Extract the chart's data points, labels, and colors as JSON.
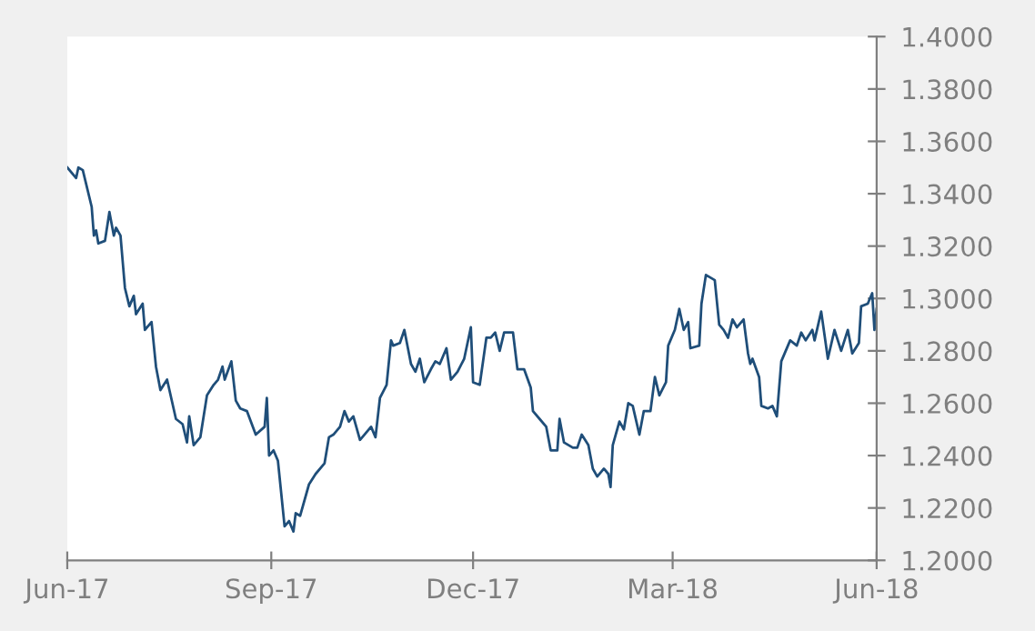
{
  "chart_data": {
    "type": "line",
    "xlim": [
      "2017-06-01",
      "2018-06-01"
    ],
    "xticks": [
      {
        "value": "2017-06-01",
        "label": "Jun-17"
      },
      {
        "value": "2017-09-01",
        "label": "Sep-17"
      },
      {
        "value": "2017-12-01",
        "label": "Dec-17"
      },
      {
        "value": "2018-03-01",
        "label": "Mar-18"
      },
      {
        "value": "2018-06-01",
        "label": "Jun-18"
      }
    ],
    "ylim": [
      1.2,
      1.4
    ],
    "yticks": [
      {
        "value": 1.2,
        "label": "1.2000"
      },
      {
        "value": 1.22,
        "label": "1.2200"
      },
      {
        "value": 1.24,
        "label": "1.2400"
      },
      {
        "value": 1.26,
        "label": "1.2600"
      },
      {
        "value": 1.28,
        "label": "1.2800"
      },
      {
        "value": 1.3,
        "label": "1.3000"
      },
      {
        "value": 1.32,
        "label": "1.3200"
      },
      {
        "value": 1.34,
        "label": "1.3400"
      },
      {
        "value": 1.36,
        "label": "1.3600"
      },
      {
        "value": 1.38,
        "label": "1.3800"
      },
      {
        "value": 1.4,
        "label": "1.4000"
      }
    ],
    "grid": false,
    "series": [
      {
        "color": "#1f4e79",
        "x": [
          "2017-06-01",
          "2017-06-05",
          "2017-06-06",
          "2017-06-08",
          "2017-06-12",
          "2017-06-13",
          "2017-06-14",
          "2017-06-15",
          "2017-06-18",
          "2017-06-20",
          "2017-06-22",
          "2017-06-23",
          "2017-06-25",
          "2017-06-27",
          "2017-06-29",
          "2017-07-01",
          "2017-07-02",
          "2017-07-05",
          "2017-07-06",
          "2017-07-09",
          "2017-07-11",
          "2017-07-13",
          "2017-07-16",
          "2017-07-20",
          "2017-07-23",
          "2017-07-25",
          "2017-07-26",
          "2017-07-28",
          "2017-07-31",
          "2017-08-03",
          "2017-08-06",
          "2017-08-08",
          "2017-08-10",
          "2017-08-11",
          "2017-08-14",
          "2017-08-16",
          "2017-08-18",
          "2017-08-21",
          "2017-08-25",
          "2017-08-29",
          "2017-08-30",
          "2017-08-31",
          "2017-09-02",
          "2017-09-04",
          "2017-09-07",
          "2017-09-09",
          "2017-09-11",
          "2017-09-12",
          "2017-09-14",
          "2017-09-18",
          "2017-09-21",
          "2017-09-25",
          "2017-09-27",
          "2017-09-29",
          "2017-10-02",
          "2017-10-04",
          "2017-10-06",
          "2017-10-08",
          "2017-10-11",
          "2017-10-13",
          "2017-10-16",
          "2017-10-18",
          "2017-10-20",
          "2017-10-23",
          "2017-10-25",
          "2017-10-26",
          "2017-10-29",
          "2017-10-31",
          "2017-11-03",
          "2017-11-05",
          "2017-11-07",
          "2017-11-09",
          "2017-11-12",
          "2017-11-14",
          "2017-11-16",
          "2017-11-19",
          "2017-11-21",
          "2017-11-24",
          "2017-11-27",
          "2017-11-30",
          "2017-12-01",
          "2017-12-04",
          "2017-12-07",
          "2017-12-09",
          "2017-12-11",
          "2017-12-13",
          "2017-12-15",
          "2017-12-19",
          "2017-12-21",
          "2017-12-24",
          "2017-12-27",
          "2017-12-28",
          "2017-12-31",
          "2018-01-03",
          "2018-01-05",
          "2018-01-08",
          "2018-01-09",
          "2018-01-11",
          "2018-01-15",
          "2018-01-17",
          "2018-01-19",
          "2018-01-22",
          "2018-01-24",
          "2018-01-26",
          "2018-01-29",
          "2018-01-31",
          "2018-02-01",
          "2018-02-02",
          "2018-02-05",
          "2018-02-07",
          "2018-02-09",
          "2018-02-11",
          "2018-02-14",
          "2018-02-16",
          "2018-02-19",
          "2018-02-21",
          "2018-02-23",
          "2018-02-26",
          "2018-02-27",
          "2018-03-02",
          "2018-03-04",
          "2018-03-06",
          "2018-03-08",
          "2018-03-09",
          "2018-03-13",
          "2018-03-14",
          "2018-03-16",
          "2018-03-20",
          "2018-03-22",
          "2018-03-24",
          "2018-03-26",
          "2018-03-28",
          "2018-03-30",
          "2018-04-02",
          "2018-04-04",
          "2018-04-05",
          "2018-04-06",
          "2018-04-09",
          "2018-04-10",
          "2018-04-13",
          "2018-04-15",
          "2018-04-17",
          "2018-04-19",
          "2018-04-23",
          "2018-04-26",
          "2018-04-28",
          "2018-04-30",
          "2018-05-03",
          "2018-05-04",
          "2018-05-07",
          "2018-05-10",
          "2018-05-13",
          "2018-05-16",
          "2018-05-19",
          "2018-05-21",
          "2018-05-24",
          "2018-05-25",
          "2018-05-28",
          "2018-05-30",
          "2018-05-31",
          "2018-06-01"
        ],
        "values": [
          1.35,
          1.346,
          1.35,
          1.349,
          1.335,
          1.324,
          1.326,
          1.321,
          1.322,
          1.333,
          1.324,
          1.327,
          1.324,
          1.304,
          1.297,
          1.301,
          1.294,
          1.298,
          1.288,
          1.291,
          1.274,
          1.265,
          1.269,
          1.254,
          1.252,
          1.245,
          1.255,
          1.244,
          1.247,
          1.263,
          1.267,
          1.269,
          1.274,
          1.269,
          1.276,
          1.261,
          1.258,
          1.257,
          1.248,
          1.251,
          1.262,
          1.24,
          1.242,
          1.238,
          1.213,
          1.215,
          1.211,
          1.218,
          1.217,
          1.229,
          1.233,
          1.237,
          1.247,
          1.248,
          1.251,
          1.257,
          1.253,
          1.255,
          1.246,
          1.248,
          1.251,
          1.247,
          1.262,
          1.267,
          1.284,
          1.282,
          1.283,
          1.288,
          1.275,
          1.272,
          1.277,
          1.268,
          1.273,
          1.276,
          1.275,
          1.281,
          1.269,
          1.272,
          1.277,
          1.289,
          1.268,
          1.267,
          1.285,
          1.285,
          1.287,
          1.28,
          1.287,
          1.287,
          1.273,
          1.273,
          1.266,
          1.257,
          1.254,
          1.251,
          1.242,
          1.242,
          1.254,
          1.245,
          1.243,
          1.243,
          1.248,
          1.244,
          1.235,
          1.232,
          1.235,
          1.233,
          1.228,
          1.244,
          1.253,
          1.25,
          1.26,
          1.259,
          1.248,
          1.257,
          1.257,
          1.27,
          1.263,
          1.268,
          1.282,
          1.288,
          1.296,
          1.288,
          1.291,
          1.281,
          1.282,
          1.298,
          1.309,
          1.307,
          1.29,
          1.288,
          1.285,
          1.292,
          1.289,
          1.292,
          1.279,
          1.275,
          1.277,
          1.27,
          1.259,
          1.258,
          1.259,
          1.255,
          1.276,
          1.284,
          1.282,
          1.287,
          1.284,
          1.288,
          1.284,
          1.295,
          1.277,
          1.288,
          1.28,
          1.288,
          1.279,
          1.283,
          1.297,
          1.298,
          1.302,
          1.288,
          1.296
        ]
      }
    ]
  }
}
